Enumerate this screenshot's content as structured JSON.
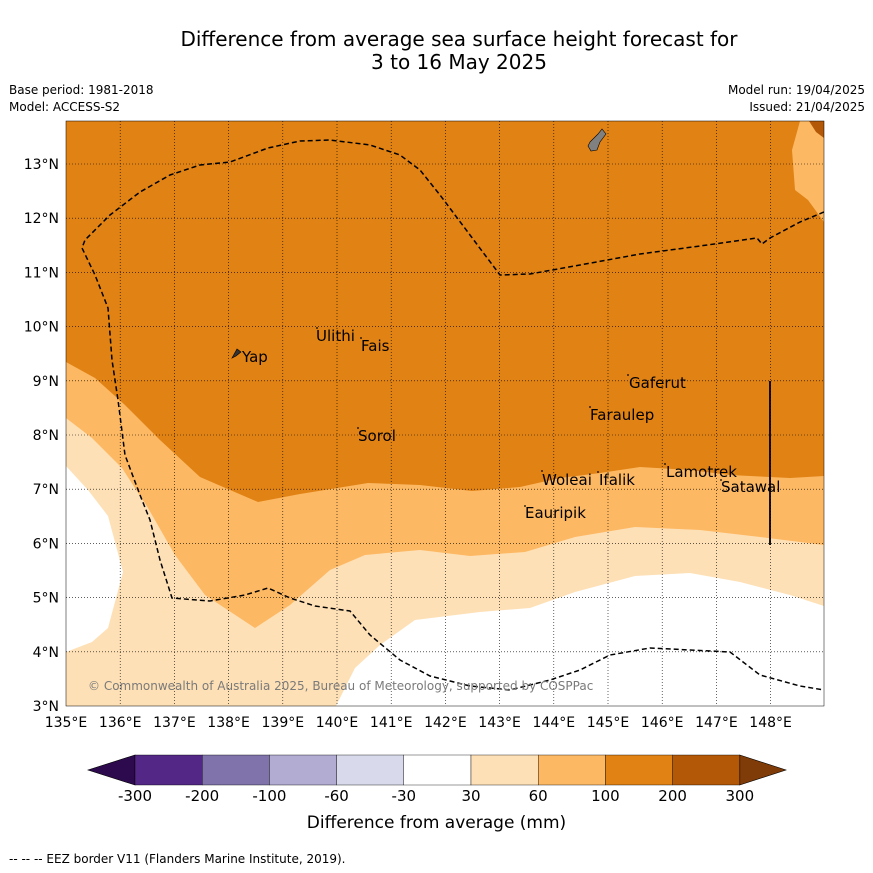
{
  "title_line1": "Difference from average sea surface height forecast for",
  "title_line2": "3 to 16 May 2025",
  "meta_left": [
    "Base period: 1981-2018",
    "Model: ACCESS-S2"
  ],
  "meta_right": [
    "Model run: 19/04/2025",
    "Issued: 21/04/2025"
  ],
  "copyright": "© Commonwealth of Australia 2025, Bureau of Meteorology, supported by COSPPac",
  "lon_ticks": [
    "135°E",
    "136°E",
    "137°E",
    "138°E",
    "139°E",
    "140°E",
    "141°E",
    "142°E",
    "143°E",
    "144°E",
    "145°E",
    "146°E",
    "147°E",
    "148°E"
  ],
  "lat_ticks": [
    "3°N",
    "4°N",
    "5°N",
    "6°N",
    "7°N",
    "8°N",
    "9°N",
    "10°N",
    "11°N",
    "12°N",
    "13°N"
  ],
  "places": [
    "Ulithi",
    "Fais",
    "Yap",
    "Gaferut",
    "Faraulep",
    "Sorol",
    "Woleai",
    "Ifalik",
    "Lamotrek",
    "Satawal",
    "Eauripik"
  ],
  "colorbar": {
    "labels": [
      "-300",
      "-200",
      "-100",
      "-60",
      "-30",
      "30",
      "60",
      "100",
      "200",
      "300"
    ],
    "colors": [
      "#2d0a4e",
      "#532785",
      "#8073ac",
      "#b2abd2",
      "#d8daeb",
      "#ffffff",
      "#fee0b6",
      "#fdb863",
      "#e08214",
      "#b35806",
      "#7f3b08"
    ]
  },
  "colorbar_title": "Difference from average (mm)",
  "footer": "--  --  -- EEZ border V11 (Flanders Marine Institute, 2019)."
}
